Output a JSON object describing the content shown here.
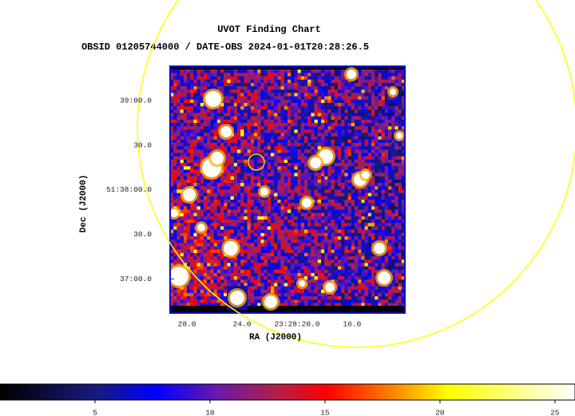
{
  "chart_data": {
    "type": "image",
    "title": "UVOT Finding Chart",
    "subtitle": "OBSID 01205744000 / DATE-OBS 2024-01-01T20:28:26.5",
    "xlabel": "RA (J2000)",
    "ylabel": "Dec (J2000)",
    "xlim": [
      29.22,
      12.17
    ],
    "xticks": [
      {
        "value": 28,
        "label": "28.0"
      },
      {
        "value": 24,
        "label": "24.0"
      },
      {
        "value": 20,
        "label": "23:28:20.0"
      },
      {
        "value": 16,
        "label": "16.0"
      }
    ],
    "ylim": [
      51.6103,
      51.6564
    ],
    "yticks": [
      {
        "value": 51.65,
        "label": "39:00.0"
      },
      {
        "value": 51.641667,
        "label": "30.0"
      },
      {
        "value": 51.633333,
        "label": "51:38:00.0"
      },
      {
        "value": 51.625,
        "label": "30.0"
      },
      {
        "value": 51.616667,
        "label": "37:00.0"
      }
    ],
    "colorbar": {
      "lim": [
        0.87,
        25.87
      ],
      "ticks": [
        5,
        10,
        15,
        20,
        25
      ]
    }
  }
}
